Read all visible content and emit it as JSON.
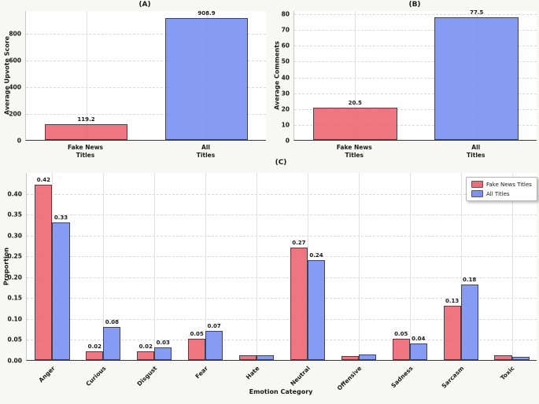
{
  "figure": {
    "bg": "#f7f7f4",
    "plot_bg": "#ffffff"
  },
  "palette": {
    "fake": "#ee6b77",
    "all": "#7c93f3",
    "bar_edge": "#33343d",
    "grid_h": "#d9d9d9",
    "grid_v": "#e2e2e2",
    "spine_bottom": "#3a3a3a",
    "text": "#1a1a1a"
  },
  "legend": {
    "items": [
      {
        "label": "Fake News Titles",
        "color_key": "fake"
      },
      {
        "label": "All Titles",
        "color_key": "all"
      }
    ],
    "position": "top-right"
  },
  "chart_data": [
    {
      "panel": "A",
      "type": "bar",
      "title": "(A)",
      "ylabel": "Average Upvote Score",
      "ymax": 970,
      "ytick_values": [
        0,
        200,
        400,
        600,
        800
      ],
      "ytick_labels": [
        "0",
        "200",
        "400",
        "600",
        "800"
      ],
      "categories": [
        [
          "Fake News",
          "Titles"
        ],
        [
          "All",
          "Titles"
        ]
      ],
      "values": [
        119.2,
        908.9
      ],
      "value_labels": [
        "119.2",
        "908.9"
      ],
      "bar_colors": [
        "fake",
        "all"
      ],
      "grid": "both"
    },
    {
      "panel": "B",
      "type": "bar",
      "title": "(B)",
      "ylabel": "Average Comments",
      "ymax": 82,
      "ytick_values": [
        0,
        10,
        20,
        30,
        40,
        50,
        60,
        70,
        80
      ],
      "ytick_labels": [
        "0",
        "10",
        "20",
        "30",
        "40",
        "50",
        "60",
        "70",
        "80"
      ],
      "categories": [
        [
          "Fake News",
          "Titles"
        ],
        [
          "All",
          "Titles"
        ]
      ],
      "values": [
        20.5,
        77.5
      ],
      "value_labels": [
        "20.5",
        "77.5"
      ],
      "bar_colors": [
        "fake",
        "all"
      ],
      "grid": "both"
    },
    {
      "panel": "C",
      "type": "grouped_bar",
      "title": "(C)",
      "xlabel": "Emotion Category",
      "ylabel": "Proportion",
      "ymax": 0.45,
      "ytick_values": [
        0,
        0.05,
        0.1,
        0.15,
        0.2,
        0.25,
        0.3,
        0.35,
        0.4
      ],
      "ytick_labels": [
        "0.00",
        "0.05",
        "0.10",
        "0.15",
        "0.20",
        "0.25",
        "0.30",
        "0.35",
        "0.40"
      ],
      "categories": [
        "Anger",
        "Curious",
        "Disgust",
        "Fear",
        "Hate",
        "Neutral",
        "Offensive",
        "Sadness",
        "Sarcasm",
        "Toxic"
      ],
      "series": [
        {
          "name": "Fake News Titles",
          "color_key": "fake",
          "values": [
            0.42,
            0.02,
            0.02,
            0.05,
            0.011,
            0.27,
            0.01,
            0.05,
            0.13,
            0.011
          ],
          "value_labels": [
            "0.42",
            "0.02",
            "0.02",
            "0.05",
            "",
            "0.27",
            "",
            "0.05",
            "0.13",
            ""
          ]
        },
        {
          "name": "All Titles",
          "color_key": "all",
          "values": [
            0.33,
            0.08,
            0.03,
            0.07,
            0.012,
            0.24,
            0.013,
            0.04,
            0.18,
            0.008
          ],
          "value_labels": [
            "0.33",
            "0.08",
            "0.03",
            "0.07",
            "",
            "0.24",
            "",
            "0.04",
            "0.18",
            ""
          ]
        }
      ],
      "grid": "both"
    }
  ]
}
